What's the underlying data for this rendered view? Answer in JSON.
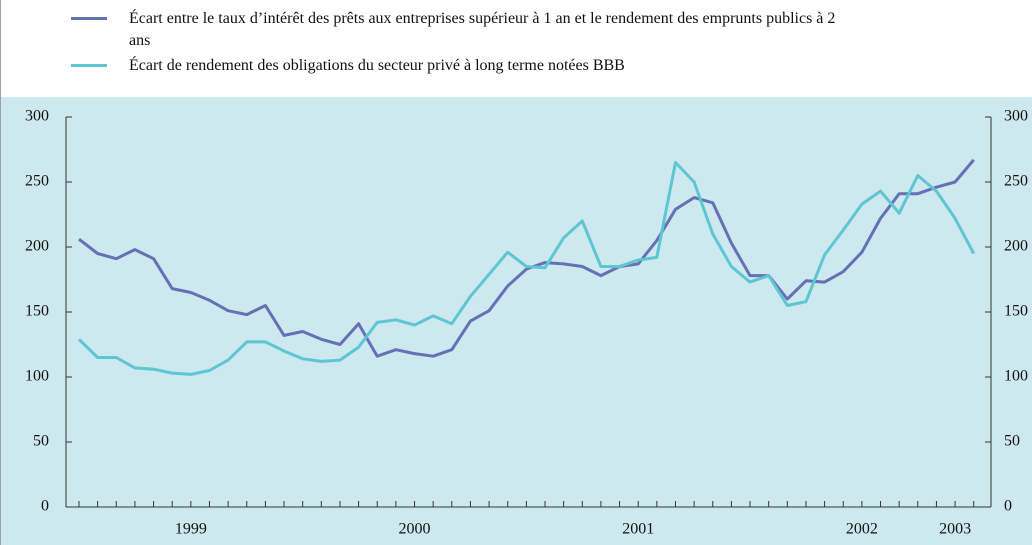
{
  "chart_data": {
    "type": "line",
    "categories": [
      null,
      null,
      null,
      null,
      null,
      null,
      "1999",
      null,
      null,
      null,
      null,
      null,
      null,
      null,
      null,
      null,
      null,
      null,
      "2000",
      null,
      null,
      null,
      null,
      null,
      null,
      null,
      null,
      null,
      null,
      null,
      "2001",
      null,
      null,
      null,
      null,
      null,
      null,
      null,
      null,
      null,
      null,
      null,
      "2002",
      null,
      null,
      null,
      null,
      "2003",
      null
    ],
    "series": [
      {
        "name": "Écart entre le taux d’intérêt des prêts aux entreprises supérieur à 1 an et le rendement des emprunts publics à 2 ans",
        "color": "#6570b5",
        "values": [
          206,
          195,
          191,
          198,
          191,
          168,
          165,
          159,
          151,
          148,
          155,
          132,
          135,
          129,
          125,
          141,
          116,
          121,
          118,
          116,
          121,
          143,
          151,
          170,
          183,
          188,
          187,
          185,
          178,
          185,
          187,
          205,
          229,
          238,
          234,
          203,
          178,
          178,
          160,
          174,
          173,
          181,
          196,
          222,
          241,
          241,
          246,
          250,
          267
        ]
      },
      {
        "name": "Écart de rendement des obligations du secteur privé à long terme notées BBB",
        "color": "#5ec6d2",
        "values": [
          129,
          115,
          115,
          107,
          106,
          103,
          102,
          105,
          113,
          127,
          127,
          120,
          114,
          112,
          113,
          123,
          142,
          144,
          140,
          147,
          141,
          162,
          179,
          196,
          185,
          184,
          207,
          220,
          185,
          185,
          190,
          192,
          265,
          250,
          210,
          185,
          173,
          178,
          155,
          158,
          194,
          213,
          233,
          243,
          226,
          255,
          243,
          222,
          195
        ]
      }
    ],
    "ylim": [
      0,
      300
    ],
    "yticks": [
      0,
      50,
      100,
      150,
      200,
      250,
      300
    ],
    "y2lim": [
      0,
      300
    ],
    "y2ticks": [
      0,
      50,
      100,
      150,
      200,
      250,
      300
    ],
    "background": "#cde8ee"
  }
}
